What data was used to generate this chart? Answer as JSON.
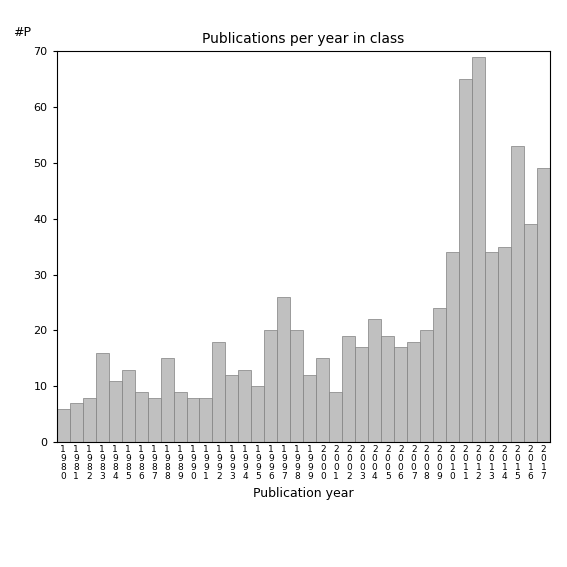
{
  "title": "Publications per year in class",
  "xlabel": "Publication year",
  "ylabel": "#P",
  "bar_color": "#c0c0c0",
  "bar_edge_color": "#808080",
  "background_color": "#ffffff",
  "ylim": [
    0,
    70
  ],
  "yticks": [
    0,
    10,
    20,
    30,
    40,
    50,
    60,
    70
  ],
  "years": [
    "1980",
    "1981",
    "1982",
    "1983",
    "1984",
    "1985",
    "1986",
    "1987",
    "1988",
    "1989",
    "1990",
    "1991",
    "1992",
    "1993",
    "1994",
    "1995",
    "1996",
    "1997",
    "1998",
    "1999",
    "2000",
    "2001",
    "2002",
    "2003",
    "2004",
    "2005",
    "2006",
    "2007",
    "2008",
    "2009",
    "2010",
    "2011",
    "2012",
    "2013",
    "2014",
    "2015",
    "2016",
    "2017"
  ],
  "values": [
    6,
    7,
    8,
    16,
    11,
    13,
    9,
    8,
    15,
    9,
    8,
    8,
    18,
    12,
    13,
    10,
    20,
    26,
    20,
    12,
    15,
    9,
    19,
    17,
    22,
    19,
    17,
    18,
    20,
    24,
    34,
    65,
    69,
    34,
    35,
    53,
    39,
    49
  ],
  "figsize": [
    5.67,
    5.67
  ],
  "dpi": 100
}
